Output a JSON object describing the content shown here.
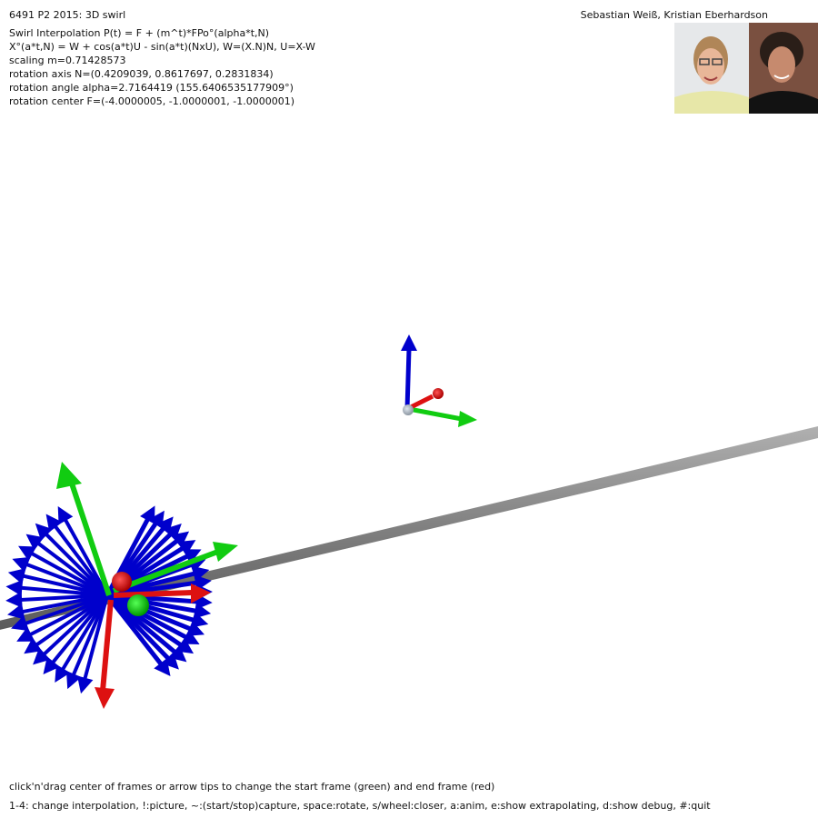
{
  "header": {
    "title": "6491 P2 2015: 3D swirl",
    "authors": "Sebastian Weiß, Kristian Eberhardson"
  },
  "info": [
    "Swirl Interpolation P(t) = F + (m^t)*FPo°(alpha*t,N)",
    "X°(a*t,N) = W + cos(a*t)U - sin(a*t)(NxU), W=(X.N)N, U=X-W",
    "scaling m=0.71428573",
    "rotation axis N=(0.4209039, 0.8617697, 0.2831834)",
    "rotation angle alpha=2.7164419 (155.6406535177909°)",
    "rotation center F=(-4.0000005, -1.0000001, -1.0000001)"
  ],
  "help": {
    "line1": "click'n'drag center of frames or arrow tips to change the start frame (green) and end frame (red)",
    "line2": "1-4: change interpolation, !:picture, ~:(start/stop)capture, space:rotate, s/wheel:closer, a:anim, e:show extrapolating, d:show debug, #:quit"
  },
  "colors": {
    "x_axis": "#dd1111",
    "y_axis": "#11cc11",
    "z_axis": "#0000cc",
    "rotation_axis": "#888888",
    "background": "#ffffff"
  }
}
